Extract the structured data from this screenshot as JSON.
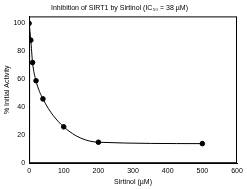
{
  "chart_data": {
    "type": "scatter",
    "title": "Inhibition of SIRT1 by Sirtinol (IC₅₀ = 38 µM)",
    "x_label": "Sirtinol (µM)",
    "y_label": "% Initial Activity",
    "x": [
      0,
      5,
      10,
      20,
      40,
      100,
      200,
      500
    ],
    "values": [
      100,
      88,
      72,
      59,
      46,
      26,
      15,
      14
    ],
    "color": "#000000",
    "marker": "circle",
    "line_style": "solid",
    "xlim": [
      0,
      600
    ],
    "xticks": [
      0,
      100,
      200,
      300,
      400,
      500,
      600
    ],
    "ylim": [
      0,
      105
    ],
    "yticks": [
      0,
      20,
      40,
      60,
      80,
      100
    ],
    "grid": false
  }
}
